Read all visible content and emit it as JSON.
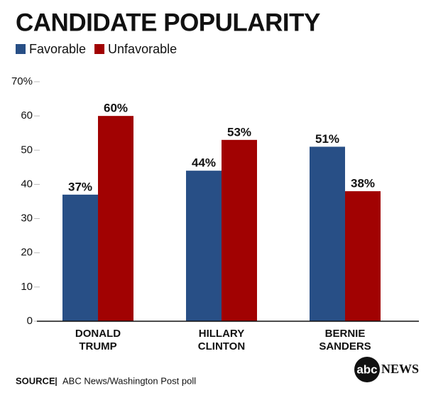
{
  "chart_data": {
    "type": "bar",
    "title": "CANDIDATE POPULARITY",
    "categories": [
      "DONALD\nTRUMP",
      "HILLARY\nCLINTON",
      "BERNIE\nSANDERS"
    ],
    "series": [
      {
        "name": "Favorable",
        "color": "#284f86",
        "values": [
          37,
          44,
          51
        ],
        "value_labels": [
          "37%",
          "44%",
          "51%"
        ]
      },
      {
        "name": "Unfavorable",
        "color": "#a10202",
        "values": [
          60,
          53,
          38
        ],
        "value_labels": [
          "60%",
          "53%",
          "38%"
        ]
      }
    ],
    "ylim": [
      0,
      70
    ],
    "yticks": [
      0,
      10,
      20,
      30,
      40,
      50,
      60,
      {
        "value": 70,
        "label": "70%"
      }
    ],
    "grid": false,
    "legend": "top-left",
    "source_label": "SOURCE",
    "source": "ABC News/Washington Post poll",
    "logo": {
      "mark": "abc",
      "text": "NEWS"
    }
  }
}
